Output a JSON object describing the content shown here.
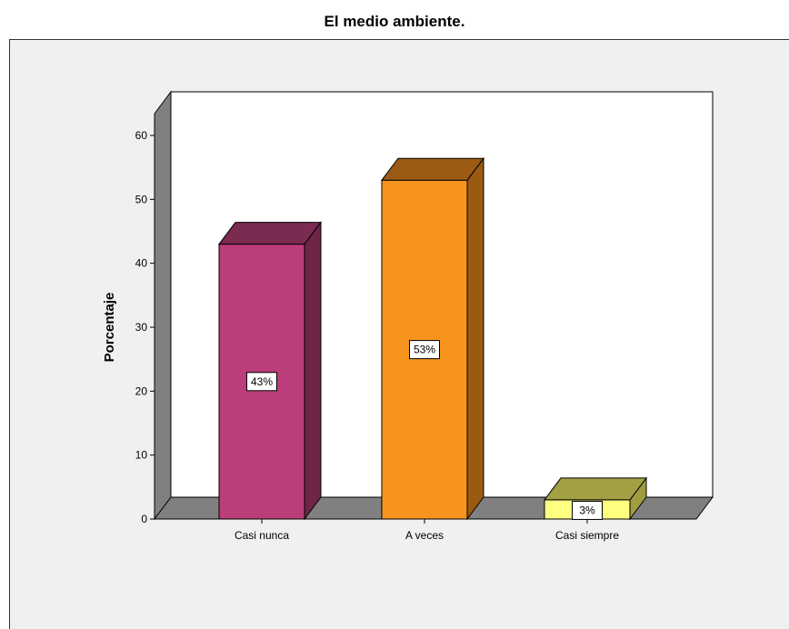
{
  "chart_data": {
    "type": "bar",
    "title": "El medio ambiente.",
    "xlabel": "",
    "ylabel": "Porcentaje",
    "ylim": [
      0,
      60
    ],
    "yticks": [
      0,
      10,
      20,
      30,
      40,
      50,
      60
    ],
    "categories": [
      "Casi nunca",
      "A veces",
      "Casi siempre"
    ],
    "values": [
      43,
      53,
      3
    ],
    "data_labels": [
      "43%",
      "53%",
      "3%"
    ],
    "colors": [
      {
        "front": "#bb3d7a",
        "side": "#6e2548",
        "top": "#7b2a51"
      },
      {
        "front": "#f7941e",
        "side": "#9a5a12",
        "top": "#9c5b14"
      },
      {
        "front": "#ffff80",
        "side": "#a09c40",
        "top": "#a39f45"
      }
    ],
    "background": "#f0f0f0",
    "grid": false,
    "legend": "none",
    "style": "3d"
  }
}
